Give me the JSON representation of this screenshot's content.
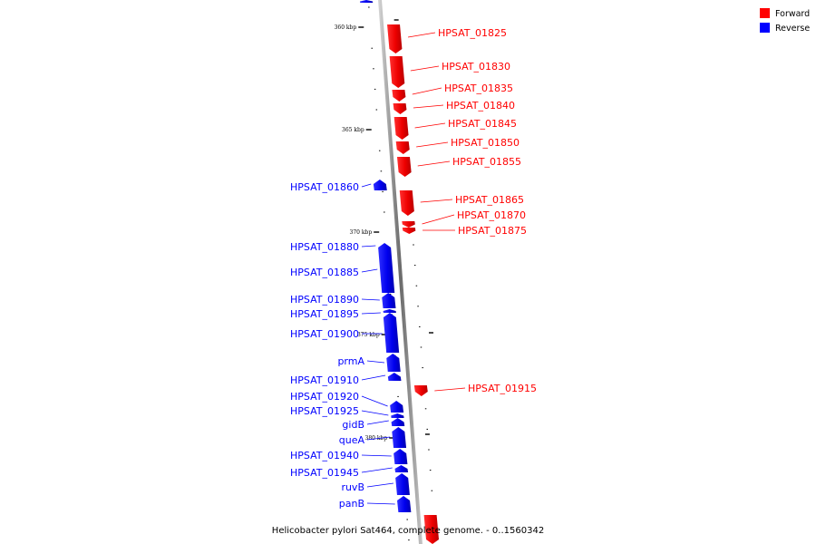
{
  "caption": "Helicobacter pylori Sat464, complete genome. - 0..1560342",
  "legend": [
    {
      "label": "Forward",
      "color": "#ff0000"
    },
    {
      "label": "Reverse",
      "color": "#0000ff"
    }
  ],
  "colors": {
    "forward": "#ff0000",
    "reverse": "#0000ff",
    "backbone": "#888888"
  },
  "scale": {
    "ticks": [
      "360 kbp",
      "365 kbp",
      "370 kbp",
      "375 kbp",
      "380 kbp"
    ]
  },
  "forward_genes": [
    "HPSAT_01825",
    "HPSAT_01830",
    "HPSAT_01835",
    "HPSAT_01840",
    "HPSAT_01845",
    "HPSAT_01850",
    "HPSAT_01855",
    "HPSAT_01865",
    "HPSAT_01870",
    "HPSAT_01875",
    "HPSAT_01915"
  ],
  "reverse_genes": [
    "HPSAT_01860",
    "HPSAT_01880",
    "HPSAT_01885",
    "HPSAT_01890",
    "HPSAT_01895",
    "HPSAT_01900",
    "prmA",
    "HPSAT_01910",
    "HPSAT_01920",
    "HPSAT_01925",
    "gidB",
    "queA",
    "HPSAT_01940",
    "HPSAT_01945",
    "ruvB",
    "panB"
  ]
}
